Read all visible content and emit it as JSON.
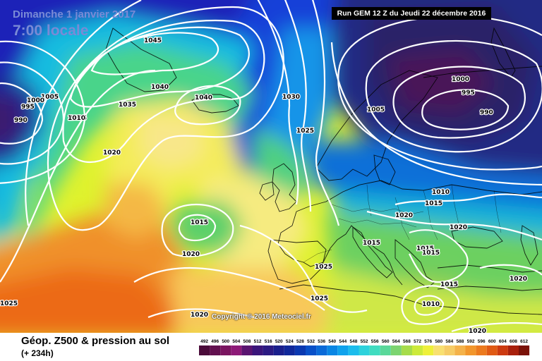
{
  "header": {
    "date": "Dimanche 1 janvier 2017",
    "time": "7:00 locale",
    "run": "Run GEM 12 Z du Jeudi 22 décembre 2016"
  },
  "copyright": "Copyright © 2016 Meteociel.fr",
  "legend": {
    "title": "Géop. Z500 & pression au sol",
    "subtitle": "(+ 234h)",
    "ticks": [
      "492",
      "496",
      "500",
      "504",
      "508",
      "512",
      "516",
      "520",
      "524",
      "528",
      "532",
      "536",
      "540",
      "544",
      "548",
      "552",
      "556",
      "560",
      "564",
      "568",
      "572",
      "576",
      "580",
      "584",
      "588",
      "592",
      "596",
      "600",
      "604",
      "608",
      "612"
    ],
    "colors": [
      "#4b0c3a",
      "#62104f",
      "#7a1560",
      "#8e1a78",
      "#5a1470",
      "#3a157a",
      "#2b1a82",
      "#1a1f8c",
      "#10289a",
      "#0a38b0",
      "#0850c8",
      "#0a6ad8",
      "#0a86e4",
      "#10a2ec",
      "#1cbcec",
      "#2ed2dc",
      "#40dcc0",
      "#5ad89a",
      "#7cd470",
      "#a6dc4a",
      "#ccea3a",
      "#eef03a",
      "#f8e070",
      "#f6cc66",
      "#f4b24a",
      "#f2962c",
      "#ec7a1e",
      "#e05a14",
      "#cc3a10",
      "#a8200c",
      "#7a1208"
    ]
  },
  "isobars": [
    "1045",
    "1040",
    "1040",
    "1035",
    "1030",
    "1025",
    "1020",
    "1005",
    "1005",
    "1000",
    "995",
    "990",
    "1005",
    "1000",
    "995",
    "990",
    "1015",
    "1020",
    "1015",
    "1015",
    "1015",
    "1025",
    "1025",
    "1020",
    "1020",
    "1010",
    "1015",
    "1020",
    "1015",
    "1010",
    "1020",
    "1020",
    "1025",
    "1010"
  ]
}
